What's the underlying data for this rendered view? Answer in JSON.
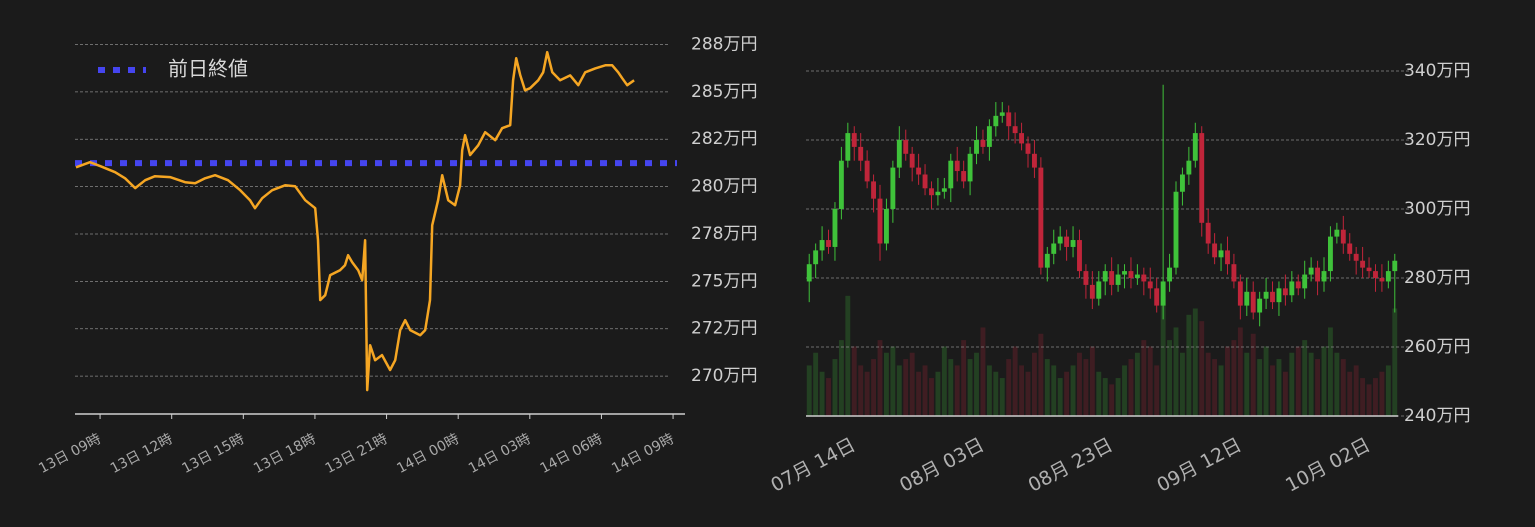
{
  "chart_data": [
    {
      "type": "line",
      "color": "#f5a623",
      "x": [
        -1.01,
        -0.42,
        0,
        0.63,
        1.05,
        1.47,
        1.89,
        2.3,
        2.93,
        3.56,
        3.98,
        4.4,
        4.82,
        5.36,
        5.87,
        6.28,
        6.49,
        6.79,
        7.21,
        7.75,
        8.17,
        8.59,
        9.01,
        9.13,
        9.22,
        9.43,
        9.64,
        10.05,
        10.26,
        10.39,
        10.56,
        10.81,
        10.98,
        11.1,
        11.19,
        11.31,
        11.52,
        11.81,
        12.15,
        12.36,
        12.57,
        12.78,
        12.99,
        13.41,
        13.62,
        13.82,
        13.91,
        14.16,
        14.33,
        14.58,
        14.87,
        15.08,
        15.17,
        15.29,
        15.5,
        15.84,
        16.13,
        16.55,
        16.84,
        17.18,
        17.3,
        17.43,
        17.6,
        17.8,
        18.01,
        18.35,
        18.56,
        18.73,
        18.94,
        19.27,
        19.69,
        20.03,
        20.32,
        20.74,
        21.16,
        21.45,
        21.7,
        21.87,
        22.08,
        22.37
      ],
      "values": [
        281.02,
        281.29,
        281.08,
        280.76,
        280.44,
        279.92,
        280.34,
        280.55,
        280.5,
        280.23,
        280.18,
        280.44,
        280.6,
        280.34,
        279.81,
        279.28,
        278.86,
        279.39,
        279.81,
        280.07,
        280.02,
        279.28,
        278.86,
        277.17,
        274.01,
        274.27,
        275.33,
        275.59,
        275.85,
        276.38,
        276.01,
        275.59,
        275.06,
        277.17,
        269.26,
        271.63,
        270.84,
        271.11,
        270.32,
        270.84,
        272.43,
        272.95,
        272.43,
        272.16,
        272.43,
        274.01,
        277.96,
        279.28,
        280.6,
        279.28,
        279.02,
        280.07,
        281.92,
        282.71,
        281.66,
        282.18,
        282.87,
        282.45,
        283.08,
        283.24,
        285.61,
        286.77,
        285.87,
        285.08,
        285.19,
        285.61,
        286.03,
        287.09,
        286.03,
        285.61,
        285.87,
        285.35,
        286.03,
        286.24,
        286.4,
        286.4,
        286.03,
        285.72,
        285.35,
        285.61
      ],
      "reference_line": {
        "name": "前日終値",
        "value": 281.24,
        "color": "#4545f0"
      },
      "xlim": [
        -1.05,
        24.5
      ],
      "xticks": [
        {
          "value": 0,
          "label": "13日 09時"
        },
        {
          "value": 3,
          "label": "13日 12時"
        },
        {
          "value": 6,
          "label": "13日 15時"
        },
        {
          "value": 9,
          "label": "13日 18時"
        },
        {
          "value": 12,
          "label": "13日 21時"
        },
        {
          "value": 15,
          "label": "14日 00時"
        },
        {
          "value": 18,
          "label": "14日 03時"
        },
        {
          "value": 21,
          "label": "14日 06時"
        },
        {
          "value": 24,
          "label": "14日 09時"
        }
      ],
      "ylim": [
        268,
        288
      ],
      "yticks": [
        {
          "value": 270,
          "label": "270万円"
        },
        {
          "value": 272.5,
          "label": "272万円"
        },
        {
          "value": 275,
          "label": "275万円"
        },
        {
          "value": 277.5,
          "label": "278万円"
        },
        {
          "value": 280,
          "label": "280万円"
        },
        {
          "value": 282.5,
          "label": "282万円"
        },
        {
          "value": 285,
          "label": "285万円"
        },
        {
          "value": 287.5,
          "label": "288万円"
        }
      ],
      "grid": true
    },
    {
      "type": "candlestick",
      "up_color": "#3fc23a",
      "down_color": "#c0253a",
      "categories": [
        null,
        null,
        null,
        null,
        null,
        null,
        null,
        "07月 14日",
        null,
        null,
        null,
        null,
        null,
        null,
        null,
        null,
        null,
        null,
        null,
        null,
        null,
        null,
        null,
        null,
        null,
        null,
        null,
        "08月 03日",
        null,
        null,
        null,
        null,
        null,
        null,
        null,
        null,
        null,
        null,
        null,
        null,
        null,
        null,
        null,
        null,
        null,
        null,
        null,
        "08月 23日",
        null,
        null,
        null,
        null,
        null,
        null,
        null,
        null,
        null,
        null,
        null,
        null,
        null,
        null,
        null,
        null,
        null,
        null,
        null,
        "09月 12日",
        null,
        null,
        null,
        null,
        null,
        null,
        null,
        null,
        null,
        null,
        null,
        null,
        null,
        null,
        null,
        null,
        null,
        null,
        null,
        "10月 02日",
        null,
        null,
        null,
        null
      ],
      "open": [
        279,
        284,
        288,
        291,
        289,
        300,
        314,
        322,
        318,
        314,
        308,
        303,
        290,
        300,
        312,
        320,
        316,
        312,
        310,
        306,
        304,
        305,
        306,
        314,
        311,
        308,
        316,
        320,
        318,
        324,
        327,
        328,
        324,
        322,
        319,
        316,
        312,
        283,
        287,
        290,
        292,
        289,
        291,
        282,
        278,
        274,
        279,
        282,
        278,
        281,
        282,
        280,
        281,
        279,
        277,
        272,
        279,
        283,
        305,
        310,
        314,
        322,
        296,
        290,
        286,
        288,
        284,
        279,
        272,
        276,
        270,
        274,
        276,
        273,
        277,
        275,
        279,
        277,
        281,
        283,
        279,
        282,
        292,
        294,
        290,
        287,
        285,
        283,
        282,
        280,
        279,
        282
      ],
      "high": [
        287,
        290,
        295,
        294,
        302,
        318,
        325,
        324,
        322,
        317,
        310,
        307,
        303,
        314,
        324,
        323,
        318,
        316,
        313,
        308,
        309,
        309,
        316,
        318,
        314,
        318,
        324,
        323,
        326,
        331,
        331,
        330,
        328,
        325,
        321,
        320,
        315,
        289,
        294,
        295,
        294,
        295,
        294,
        284,
        282,
        282,
        284,
        286,
        284,
        284,
        286,
        284,
        283,
        283,
        280,
        336,
        287,
        308,
        312,
        318,
        325,
        324,
        300,
        293,
        290,
        292,
        287,
        281,
        280,
        279,
        276,
        280,
        279,
        279,
        281,
        282,
        281,
        285,
        286,
        285,
        286,
        295,
        296,
        298,
        293,
        289,
        289,
        286,
        284,
        284,
        285,
        287
      ],
      "low": [
        273,
        280,
        285,
        287,
        285,
        297,
        312,
        314,
        311,
        306,
        299,
        285,
        288,
        296,
        309,
        314,
        308,
        307,
        304,
        300,
        301,
        303,
        302,
        308,
        306,
        304,
        313,
        316,
        314,
        321,
        325,
        320,
        319,
        317,
        312,
        309,
        281,
        279,
        284,
        288,
        285,
        286,
        280,
        274,
        271,
        272,
        275,
        275,
        276,
        277,
        277,
        278,
        275,
        274,
        270,
        268,
        276,
        281,
        301,
        307,
        312,
        292,
        287,
        284,
        282,
        281,
        277,
        268,
        269,
        268,
        266,
        271,
        271,
        269,
        272,
        273,
        275,
        274,
        279,
        275,
        276,
        279,
        290,
        287,
        285,
        281,
        280,
        280,
        276,
        276,
        277,
        270
      ],
      "close": [
        284,
        288,
        291,
        289,
        300,
        314,
        322,
        318,
        314,
        308,
        303,
        290,
        300,
        312,
        320,
        316,
        312,
        310,
        306,
        304,
        305,
        306,
        314,
        311,
        308,
        316,
        320,
        318,
        324,
        327,
        328,
        324,
        322,
        319,
        316,
        312,
        283,
        287,
        290,
        292,
        289,
        291,
        282,
        278,
        274,
        279,
        282,
        278,
        281,
        282,
        280,
        281,
        279,
        277,
        272,
        279,
        283,
        305,
        310,
        314,
        322,
        296,
        290,
        286,
        288,
        284,
        279,
        272,
        276,
        270,
        274,
        276,
        273,
        277,
        275,
        279,
        277,
        281,
        283,
        279,
        282,
        292,
        294,
        290,
        287,
        285,
        283,
        282,
        280,
        279,
        282,
        285
      ],
      "volume": [
        40,
        50,
        35,
        30,
        45,
        60,
        95,
        55,
        40,
        35,
        45,
        60,
        50,
        55,
        40,
        45,
        50,
        35,
        40,
        30,
        35,
        55,
        45,
        40,
        60,
        45,
        50,
        70,
        40,
        35,
        30,
        45,
        55,
        40,
        35,
        50,
        65,
        45,
        40,
        30,
        35,
        40,
        50,
        45,
        55,
        35,
        30,
        25,
        30,
        40,
        45,
        50,
        60,
        55,
        40,
        95,
        60,
        70,
        50,
        80,
        85,
        75,
        50,
        45,
        40,
        55,
        60,
        70,
        50,
        65,
        45,
        55,
        40,
        45,
        35,
        50,
        55,
        60,
        50,
        45,
        55,
        70,
        50,
        45,
        35,
        40,
        30,
        25,
        30,
        35,
        40,
        85
      ],
      "volume_ylim": [
        0,
        300
      ],
      "ylim": [
        240,
        350
      ],
      "yticks": [
        {
          "value": 240,
          "label": "240万円"
        },
        {
          "value": 260,
          "label": "260万円"
        },
        {
          "value": 280,
          "label": "280万円"
        },
        {
          "value": 300,
          "label": "300万円"
        },
        {
          "value": 320,
          "label": "320万円"
        },
        {
          "value": 340,
          "label": "340万円"
        }
      ],
      "grid": true
    }
  ]
}
